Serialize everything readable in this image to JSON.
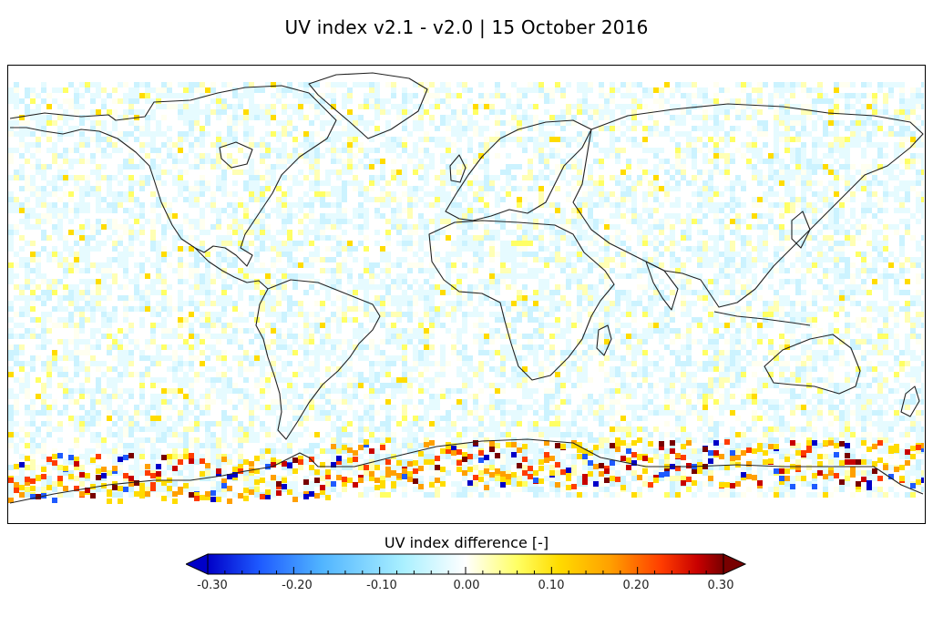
{
  "title": "UV index v2.1 - v2.0  |  15 October 2016",
  "colorbar": {
    "label": "UV index difference  [-]",
    "ticks": [
      "-0.30",
      "-0.20",
      "-0.10",
      "0.00",
      "0.10",
      "0.20",
      "0.30"
    ],
    "range": [
      -0.3,
      0.3
    ],
    "extend": "both",
    "colors": [
      "#0000c8",
      "#1e5aff",
      "#50b4ff",
      "#aaf0ff",
      "#ffffff",
      "#ffff64",
      "#ffdc00",
      "#ffa000",
      "#ff3c00",
      "#c80000",
      "#780000"
    ]
  },
  "map": {
    "projection": "equirectangular",
    "date": "15 October 2016",
    "variable": "UV index difference v2.1 - v2.0"
  }
}
